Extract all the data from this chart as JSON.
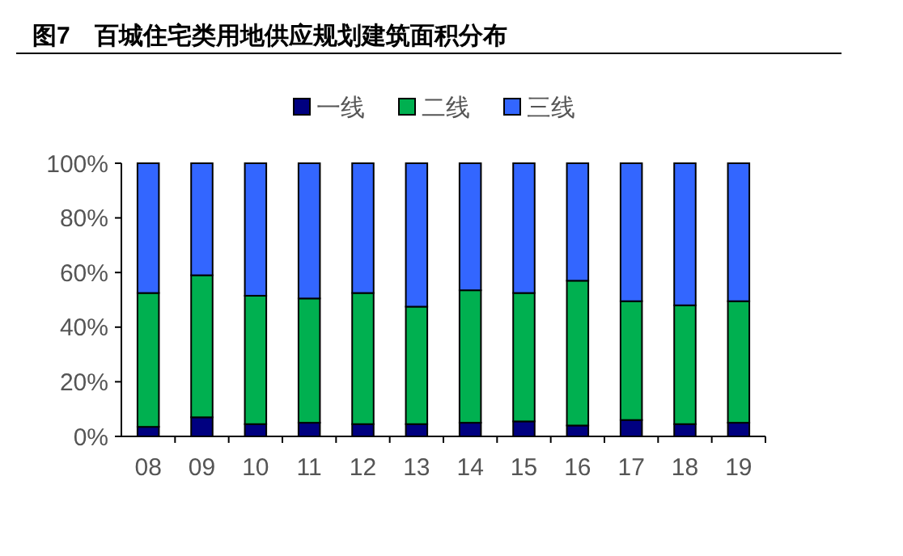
{
  "chart_data": {
    "type": "bar",
    "title": "图7　百城住宅类用地供应规划建筑面积分布",
    "stacked": true,
    "legend": "top",
    "grid": false,
    "categories": [
      "08",
      "09",
      "10",
      "11",
      "12",
      "13",
      "14",
      "15",
      "16",
      "17",
      "18",
      "19"
    ],
    "series": [
      {
        "name": "一线",
        "color": "#000080",
        "values": [
          3.5,
          7,
          4.5,
          5,
          4.5,
          4.5,
          5,
          5.5,
          4,
          6,
          4.5,
          5
        ]
      },
      {
        "name": "二线",
        "color": "#00b050",
        "values": [
          49,
          52,
          47,
          45.5,
          48,
          43,
          48.5,
          47,
          53,
          43.5,
          43.5,
          44.5
        ]
      },
      {
        "name": "三线",
        "color": "#3366ff",
        "values": [
          47.5,
          41,
          48.5,
          49.5,
          47.5,
          52.5,
          46.5,
          47.5,
          43,
          50.5,
          52,
          50.5
        ]
      }
    ],
    "ylim": [
      0,
      100
    ],
    "yticks": [
      {
        "value": 0,
        "label": "0%"
      },
      {
        "value": 20,
        "label": "20%"
      },
      {
        "value": 40,
        "label": "40%"
      },
      {
        "value": 60,
        "label": "60%"
      },
      {
        "value": 80,
        "label": "80%"
      },
      {
        "value": 100,
        "label": "100%"
      }
    ]
  }
}
